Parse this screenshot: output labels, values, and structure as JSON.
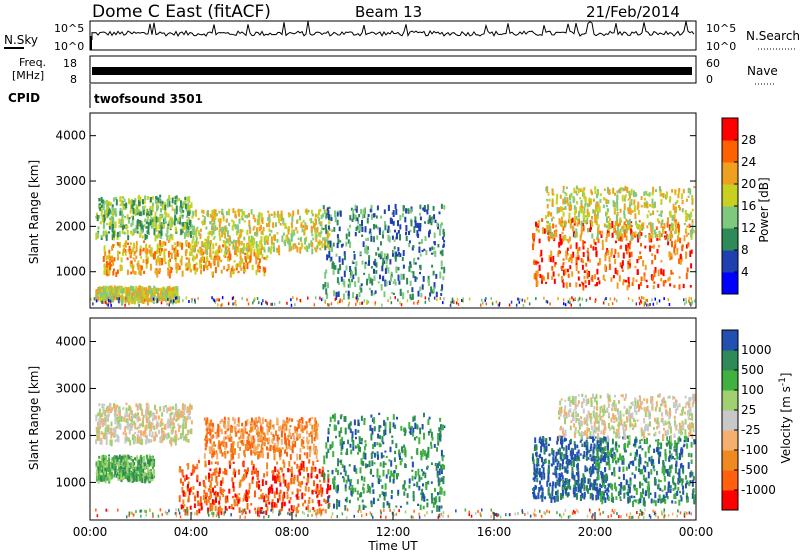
{
  "header": {
    "station": "Dome C East (fitACF)",
    "beam": "Beam 13",
    "date": "21/Feb/2014"
  },
  "top_panels": {
    "nsky_label": "N.Sky",
    "nsearch_label": "N.Search",
    "nsky_ticks": [
      "10^5",
      "10^0"
    ],
    "nsearch_ticks": [
      "10^5",
      "10^0"
    ],
    "freq_label_line1": "Freq.",
    "freq_label_line2": "[MHz]",
    "freq_ticks": [
      "18",
      "8"
    ],
    "nave_label": "Nave",
    "nave_ticks": [
      "60",
      "0"
    ],
    "cpid_label": "CPID",
    "cpid_value": "twofsound 3501"
  },
  "chart_data": [
    {
      "type": "heatmap",
      "name": "power",
      "ylabel": "Slant Range [km]",
      "yticks": [
        1000,
        2000,
        3000,
        4000
      ],
      "ylim": [
        200,
        4500
      ],
      "xlim": [
        0,
        24
      ],
      "colorbar": {
        "label": "Power [dB]",
        "ticks": [
          "28",
          "24",
          "20",
          "16",
          "12",
          "8",
          "4"
        ],
        "colors": [
          "#0000ff",
          "#2040b0",
          "#2e8b57",
          "#7fc97f",
          "#c8d020",
          "#f0a020",
          "#ff6000",
          "#ff0000"
        ]
      },
      "regions": [
        {
          "t0": 0.2,
          "t1": 4.0,
          "r0": 1800,
          "r1": 2700,
          "level": 3
        },
        {
          "t0": 0.2,
          "t1": 3.5,
          "r0": 400,
          "r1": 700,
          "level": 4
        },
        {
          "t0": 0.5,
          "t1": 7.0,
          "r0": 1000,
          "r1": 1700,
          "level": 5
        },
        {
          "t0": 4.0,
          "t1": 9.5,
          "r0": 1500,
          "r1": 2400,
          "level": 4
        },
        {
          "t0": 9.2,
          "t1": 14.0,
          "r0": 500,
          "r1": 2500,
          "level": 2
        },
        {
          "t0": 17.5,
          "t1": 23.8,
          "r0": 700,
          "r1": 2200,
          "level": 6
        },
        {
          "t0": 18.0,
          "t1": 23.9,
          "r0": 1800,
          "r1": 2900,
          "level": 4
        }
      ]
    },
    {
      "type": "heatmap",
      "name": "velocity",
      "xlabel": "Time UT",
      "ylabel": "Slant Range [km]",
      "xticks": [
        "00:00",
        "04:00",
        "08:00",
        "12:00",
        "16:00",
        "20:00",
        "00:00"
      ],
      "yticks": [
        1000,
        2000,
        3000,
        4000
      ],
      "ylim": [
        200,
        4500
      ],
      "xlim": [
        0,
        24
      ],
      "colorbar": {
        "label": "Velocity [m s^-1]",
        "ticks": [
          "1000",
          "500",
          "100",
          "25",
          "-25",
          "-100",
          "-500",
          "-1000"
        ],
        "colors": [
          "#ff0000",
          "#ff6010",
          "#f08a20",
          "#f5b070",
          "#c8c8c8",
          "#a0d070",
          "#40b040",
          "#2e8b57",
          "#2050b0"
        ]
      },
      "regions": [
        {
          "t0": 0.2,
          "t1": 4.0,
          "r0": 1900,
          "r1": 2700,
          "level": 4
        },
        {
          "t0": 0.2,
          "t1": 2.5,
          "r0": 1100,
          "r1": 1600,
          "level": 6
        },
        {
          "t0": 3.5,
          "t1": 9.5,
          "r0": 400,
          "r1": 1500,
          "level": 1
        },
        {
          "t0": 4.5,
          "t1": 9.0,
          "r0": 1600,
          "r1": 2400,
          "level": 2
        },
        {
          "t0": 9.2,
          "t1": 14.0,
          "r0": 500,
          "r1": 2500,
          "level": 7
        },
        {
          "t0": 17.5,
          "t1": 20.5,
          "r0": 700,
          "r1": 2000,
          "level": 8
        },
        {
          "t0": 20.0,
          "t1": 23.9,
          "r0": 600,
          "r1": 2000,
          "level": 7
        },
        {
          "t0": 18.5,
          "t1": 23.9,
          "r0": 2000,
          "r1": 2900,
          "level": 4
        }
      ]
    }
  ]
}
